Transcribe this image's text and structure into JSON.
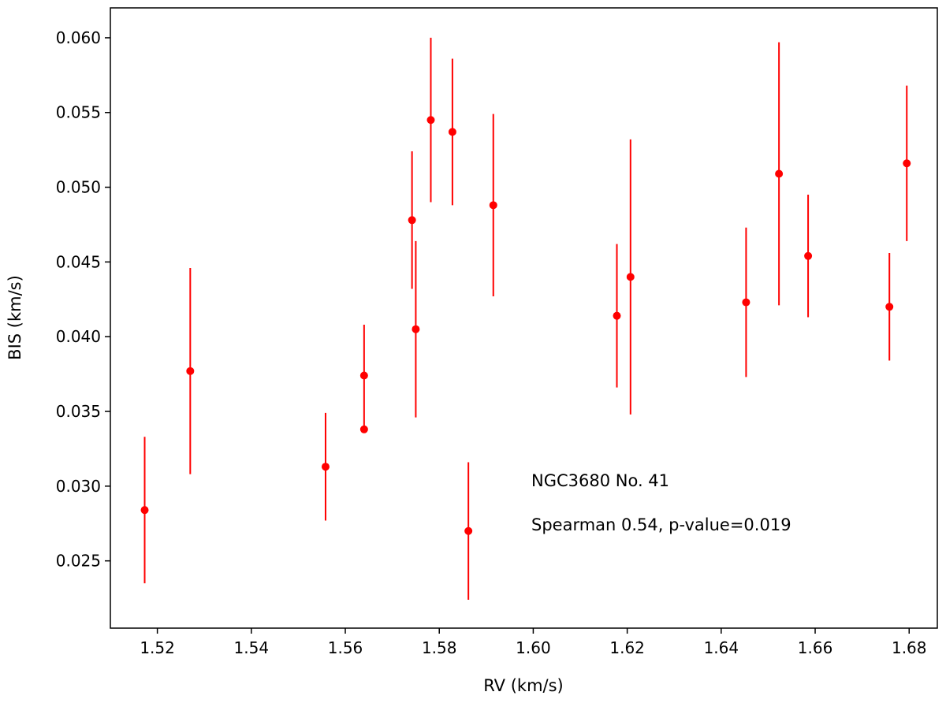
{
  "chart_data": {
    "type": "scatter",
    "title": "",
    "xlabel": "RV (km/s)",
    "ylabel": "BIS (km/s)",
    "xlim": [
      1.51,
      1.686
    ],
    "ylim": [
      0.0205,
      0.062
    ],
    "xticks": [
      "1.52",
      "1.54",
      "1.56",
      "1.58",
      "1.60",
      "1.62",
      "1.64",
      "1.66",
      "1.68"
    ],
    "yticks": [
      "0.025",
      "0.030",
      "0.035",
      "0.040",
      "0.045",
      "0.050",
      "0.055",
      "0.060"
    ],
    "grid": false,
    "legend": "none",
    "color": "#ff0000",
    "annotations": [
      "NGC3680 No. 41",
      "Spearman 0.54, p-value=0.019"
    ],
    "points": [
      {
        "x": 1.5173,
        "y": 0.0284,
        "yerr": 0.0049
      },
      {
        "x": 1.527,
        "y": 0.0377,
        "yerr": 0.0069
      },
      {
        "x": 1.5558,
        "y": 0.0313,
        "yerr": 0.0036
      },
      {
        "x": 1.564,
        "y": 0.0374,
        "yerr": 0.0034
      },
      {
        "x": 1.564,
        "y": 0.0338,
        "yerr": 0.0
      },
      {
        "x": 1.5742,
        "y": 0.0478,
        "yerr": 0.0046
      },
      {
        "x": 1.575,
        "y": 0.0405,
        "yerr": 0.0059
      },
      {
        "x": 1.5782,
        "y": 0.0545,
        "yerr": 0.0055
      },
      {
        "x": 1.5828,
        "y": 0.0537,
        "yerr": 0.0049
      },
      {
        "x": 1.5862,
        "y": 0.027,
        "yerr": 0.0046
      },
      {
        "x": 1.5915,
        "y": 0.0488,
        "yerr": 0.0061
      },
      {
        "x": 1.6178,
        "y": 0.0414,
        "yerr": 0.0048
      },
      {
        "x": 1.6207,
        "y": 0.044,
        "yerr": 0.0092
      },
      {
        "x": 1.6453,
        "y": 0.0423,
        "yerr": 0.005
      },
      {
        "x": 1.6523,
        "y": 0.0509,
        "yerr": 0.0088
      },
      {
        "x": 1.6585,
        "y": 0.0454,
        "yerr": 0.0041
      },
      {
        "x": 1.6758,
        "y": 0.042,
        "yerr": 0.0036
      },
      {
        "x": 1.6795,
        "y": 0.0516,
        "yerr": 0.0052
      }
    ]
  }
}
